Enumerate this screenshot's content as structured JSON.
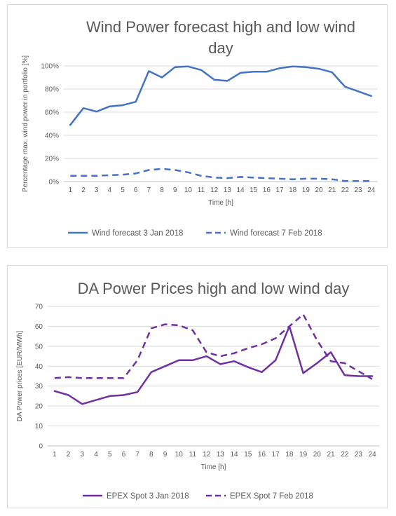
{
  "chart_data": [
    {
      "type": "line",
      "title_lines": [
        "Wind Power forecast high and low wind",
        "day"
      ],
      "xlabel": "Time [h]",
      "ylabel": "Percentage max. wind power in portfolio [%]",
      "ylim": [
        0,
        100
      ],
      "yticks": [
        "0%",
        "20%",
        "40%",
        "60%",
        "80%",
        "100%"
      ],
      "x": [
        "1",
        "2",
        "3",
        "4",
        "5",
        "6",
        "7",
        "8",
        "9",
        "10",
        "11",
        "12",
        "13",
        "14",
        "15",
        "16",
        "17",
        "18",
        "19",
        "20",
        "21",
        "22",
        "23",
        "24"
      ],
      "grid": true,
      "legend_position": "bottom",
      "series": [
        {
          "name": "Wind forecast 3 Jan 2018",
          "style": "solid",
          "color": "#4472c4",
          "values": [
            49,
            63.5,
            60.5,
            65,
            66,
            69,
            95.5,
            90,
            99,
            99.5,
            96.5,
            88,
            87,
            94,
            95,
            95,
            98,
            99.5,
            99,
            97.5,
            94.5,
            82,
            78,
            74
          ]
        },
        {
          "name": "Wind forecast 7 Feb 2018",
          "style": "dashed",
          "color": "#4472c4",
          "values": [
            5,
            5,
            5,
            5.5,
            6,
            7,
            10,
            11,
            10,
            8,
            5,
            3.5,
            3,
            4,
            3.5,
            3,
            2.5,
            2,
            2.5,
            2.5,
            2,
            0.5,
            0.5,
            0.5
          ]
        }
      ]
    },
    {
      "type": "line",
      "title_lines": [
        "DA Power Prices high and low wind day"
      ],
      "xlabel": "Time [h]",
      "ylabel": "DA Power prices [EUR/MWh]",
      "ylim": [
        0,
        70
      ],
      "yticks": [
        "0",
        "10",
        "20",
        "30",
        "40",
        "50",
        "60",
        "70"
      ],
      "x": [
        "1",
        "2",
        "3",
        "4",
        "5",
        "6",
        "7",
        "8",
        "9",
        "10",
        "11",
        "12",
        "13",
        "14",
        "15",
        "16",
        "17",
        "18",
        "19",
        "20",
        "21",
        "22",
        "23",
        "24"
      ],
      "grid": true,
      "legend_position": "bottom",
      "series": [
        {
          "name": "EPEX Spot 3 Jan 2018",
          "style": "solid",
          "color": "#7030a0",
          "values": [
            27.5,
            25.5,
            21,
            23,
            25,
            25.5,
            27,
            37,
            40,
            43,
            43,
            45,
            41,
            42.5,
            39.5,
            37,
            43,
            60,
            36.5,
            41.5,
            47,
            35.5,
            35,
            35
          ]
        },
        {
          "name": "EPEX Spot 7 Feb 2018",
          "style": "dashed",
          "color": "#7030a0",
          "values": [
            34,
            34.5,
            34,
            34,
            34,
            34,
            43,
            59,
            61,
            60.5,
            58,
            47,
            45,
            46.5,
            49,
            51,
            54,
            60,
            66,
            53,
            42.5,
            41.5,
            37.5,
            33.5
          ]
        }
      ]
    }
  ]
}
